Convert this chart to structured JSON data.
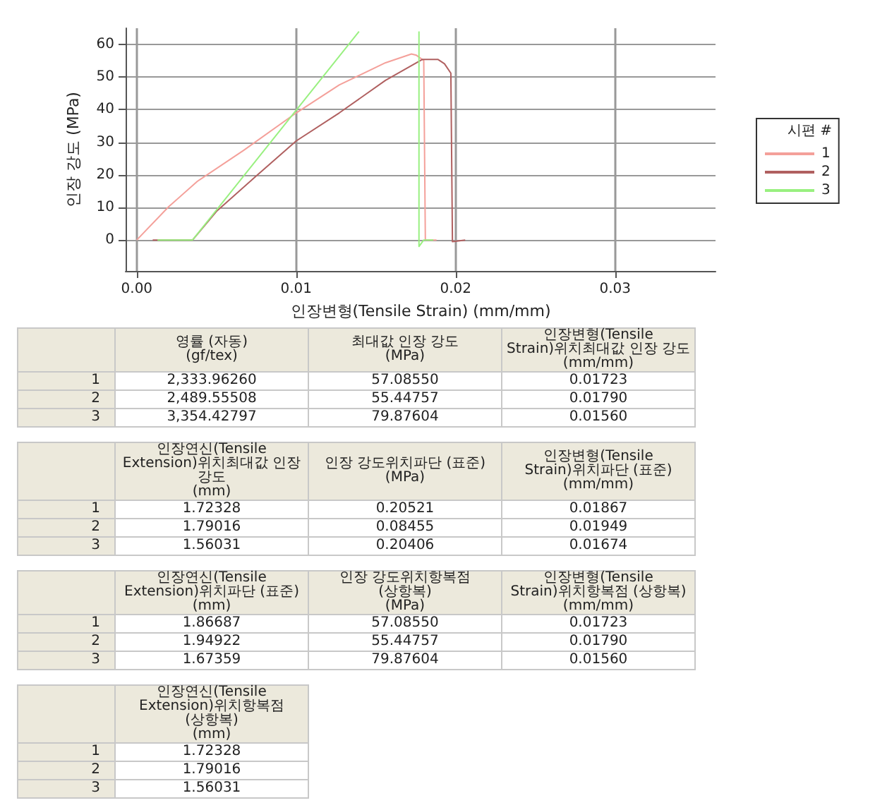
{
  "chart_data": [
    {
      "type": "line",
      "xlabel": "인장변형(Tensile Strain) (mm/mm)",
      "ylabel": "인장 강도 (MPa)",
      "legend_title": "시편 #",
      "legend": "right",
      "grid": true,
      "marker": "none",
      "line_style": "solid",
      "xlim": [
        -0.0007,
        0.0363
      ],
      "ylim": [
        -9.5,
        65
      ],
      "xticks": [
        {
          "value": 0,
          "label": "0.00"
        },
        0.01,
        0.02,
        0.03
      ],
      "yticks": [
        0,
        10,
        20,
        30,
        40,
        50,
        60
      ],
      "series": [
        {
          "name": "1",
          "color": "#f4a09a",
          "x": [
            0,
            0.002,
            0.0038,
            0.0067,
            0.01,
            0.0127,
            0.0156,
            0.01723,
            0.01754,
            0.018,
            0.0181,
            0.0188
          ],
          "values": [
            0,
            10.2,
            18,
            27.5,
            39,
            47.6,
            54.4,
            57.1,
            56.7,
            55.1,
            0,
            0
          ]
        },
        {
          "name": "2",
          "color": "#b06060",
          "x": [
            0.001,
            0.0035,
            0.005,
            0.0073,
            0.01,
            0.0127,
            0.0156,
            0.0179,
            0.0189,
            0.0193,
            0.0197,
            0.0198,
            0.0206
          ],
          "values": [
            0,
            0,
            8.8,
            18.8,
            30.4,
            39,
            49,
            55.4,
            55.4,
            54.1,
            51.2,
            -0.5,
            0
          ]
        },
        {
          "name": "3",
          "color": "#99f080",
          "x": [
            0.0013,
            0.0035,
            0.01394,
            0.016,
            0.0177,
            0.0177,
            0.018,
            0.0186
          ],
          "values": [
            0,
            0,
            64,
            null,
            64,
            -2,
            0,
            0
          ]
        }
      ]
    },
    {
      "type": "other",
      "categories": [
        "영률 (자동)\n(gf/tex)",
        "최대값 인장 강도\n(MPa)",
        "인장변형(Tensile\nStrain)위치최대값 인장 강도\n(mm/mm)"
      ],
      "y_categories": [
        "1",
        "2",
        "3"
      ],
      "cell_labels": [
        [
          "2,333.96260",
          "57.08550",
          "0.01723"
        ],
        [
          "2,489.55508",
          "55.44757",
          "0.01790"
        ],
        [
          "3,354.42797",
          "79.87604",
          "0.01560"
        ]
      ]
    },
    {
      "type": "other",
      "categories": [
        "인장연신(Tensile\nExtension)위치최대값 인장\n강도\n(mm)",
        "인장 강도위치파단 (표준)\n(MPa)",
        "인장변형(Tensile\nStrain)위치파단 (표준)\n(mm/mm)"
      ],
      "y_categories": [
        "1",
        "2",
        "3"
      ],
      "cell_labels": [
        [
          "1.72328",
          "0.20521",
          "0.01867"
        ],
        [
          "1.79016",
          "0.08455",
          "0.01949"
        ],
        [
          "1.56031",
          "0.20406",
          "0.01674"
        ]
      ]
    },
    {
      "type": "other",
      "categories": [
        "인장연신(Tensile\nExtension)위치파단 (표준)\n(mm)",
        "인장 강도위치항복점\n(상항복)\n(MPa)",
        "인장변형(Tensile\nStrain)위치항복점 (상항복)\n(mm/mm)"
      ],
      "y_categories": [
        "1",
        "2",
        "3"
      ],
      "cell_labels": [
        [
          "1.86687",
          "57.08550",
          "0.01723"
        ],
        [
          "1.94922",
          "55.44757",
          "0.01790"
        ],
        [
          "1.67359",
          "79.87604",
          "0.01560"
        ]
      ]
    },
    {
      "type": "other",
      "categories": [
        "인장연신(Tensile\nExtension)위치항복점\n(상항복)\n(mm)"
      ],
      "y_categories": [
        "1",
        "2",
        "3"
      ],
      "cell_labels": [
        [
          "1.72328"
        ],
        [
          "1.79016"
        ],
        [
          "1.56031"
        ]
      ]
    }
  ]
}
